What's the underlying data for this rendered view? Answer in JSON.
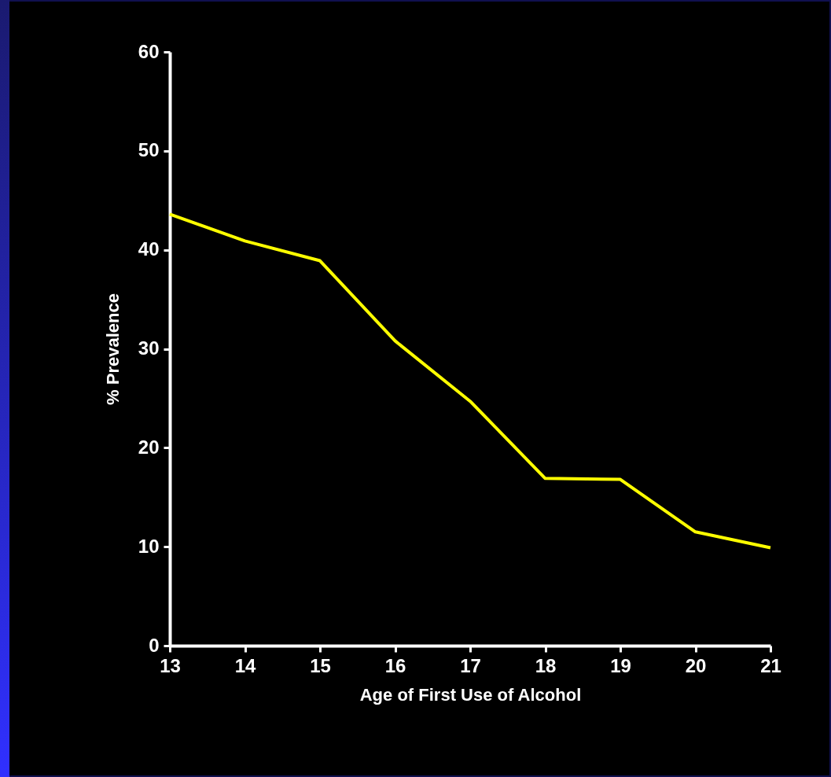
{
  "chart_data": {
    "type": "line",
    "xlabel": "Age of First Use of Alcohol",
    "ylabel": "% Prevalence",
    "x": [
      13,
      14,
      15,
      16,
      17,
      18,
      19,
      20,
      21
    ],
    "series": [
      {
        "color": "#ffff00",
        "values": [
          43.6,
          40.9,
          38.9,
          30.8,
          24.7,
          16.9,
          16.8,
          11.5,
          9.9
        ]
      }
    ],
    "xlim": [
      13,
      21
    ],
    "xticks": [
      13,
      14,
      15,
      16,
      17,
      18,
      19,
      20,
      21
    ],
    "ylim": [
      0,
      60
    ],
    "yticks": [
      0,
      10,
      20,
      30,
      40,
      50,
      60
    ],
    "grid": false,
    "marker": "none",
    "line_style": "solid"
  }
}
